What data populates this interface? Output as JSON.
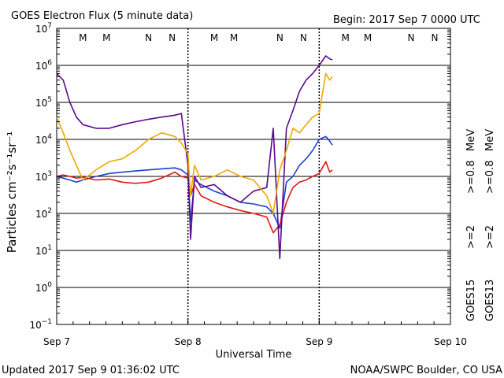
{
  "header": {
    "title": "GOES Electron Flux (5 minute data)",
    "begin": "Begin: 2017 Sep 7 0000 UTC"
  },
  "footer": {
    "updated": "Updated 2017 Sep  9 01:36:02 UTC",
    "credit": "NOAA/SWPC Boulder, CO USA"
  },
  "colors": {
    "ge2_goes15": "#1f3fd1",
    "ge2_goes13": "#e01818",
    "ge08_goes15": "#5a0a8c",
    "ge08_goes13": "#f0a800",
    "marker_m": "#d01010",
    "marker_n": "#1f3fd1"
  },
  "legend": {
    "goes15_label": "GOES15",
    "goes13_label": "GOES13",
    "ge2": ">=2",
    "ge08": ">=0.8",
    "unit": "MeV"
  },
  "markers": [
    {
      "label": "M",
      "x": 0.2,
      "color": "marker_m"
    },
    {
      "label": "M",
      "x": 0.38,
      "color": "marker_n"
    },
    {
      "label": "N",
      "x": 0.7,
      "color": "marker_m"
    },
    {
      "label": "N",
      "x": 0.88,
      "color": "marker_n"
    },
    {
      "label": "M",
      "x": 1.2,
      "color": "marker_m"
    },
    {
      "label": "M",
      "x": 1.35,
      "color": "marker_n"
    },
    {
      "label": "N",
      "x": 1.7,
      "color": "marker_m"
    },
    {
      "label": "N",
      "x": 1.88,
      "color": "marker_n"
    },
    {
      "label": "M",
      "x": 2.2,
      "color": "marker_m"
    },
    {
      "label": "M",
      "x": 2.37,
      "color": "marker_n"
    },
    {
      "label": "N",
      "x": 2.7,
      "color": "marker_m"
    },
    {
      "label": "N",
      "x": 2.88,
      "color": "marker_n"
    }
  ],
  "chart_data": {
    "type": "line",
    "title": "GOES Electron Flux (5 minute data)",
    "xlabel": "Universal Time",
    "ylabel": "Particles cm⁻²s⁻¹sr⁻¹",
    "x_unit": "days since Sep 7 0000 UTC",
    "xlim": [
      0,
      3
    ],
    "x_ticks": [
      {
        "x": 0,
        "label": "Sep 7"
      },
      {
        "x": 1,
        "label": "Sep 8"
      },
      {
        "x": 2,
        "label": "Sep 9"
      },
      {
        "x": 3,
        "label": "Sep 10"
      }
    ],
    "y_scale": "log",
    "ylim_exp": [
      -1,
      7
    ],
    "y_ticks_exp": [
      -1,
      0,
      1,
      2,
      3,
      4,
      5,
      6,
      7
    ],
    "threshold": {
      "value": 1000,
      "style": "dashed",
      "x_start": 2.0
    },
    "grid": "horizontal",
    "series": [
      {
        "name": "GOES15 >=2 MeV",
        "color": "ge2_goes15",
        "points": [
          [
            0,
            1000
          ],
          [
            0.05,
            900
          ],
          [
            0.1,
            800
          ],
          [
            0.15,
            700
          ],
          [
            0.2,
            800
          ],
          [
            0.3,
            1000
          ],
          [
            0.4,
            1200
          ],
          [
            0.5,
            1300
          ],
          [
            0.6,
            1400
          ],
          [
            0.7,
            1500
          ],
          [
            0.8,
            1600
          ],
          [
            0.9,
            1700
          ],
          [
            0.95,
            1500
          ],
          [
            1.0,
            1100
          ],
          [
            1.02,
            60
          ],
          [
            1.05,
            800
          ],
          [
            1.1,
            600
          ],
          [
            1.2,
            400
          ],
          [
            1.3,
            300
          ],
          [
            1.4,
            200
          ],
          [
            1.5,
            180
          ],
          [
            1.6,
            150
          ],
          [
            1.65,
            100
          ],
          [
            1.7,
            40
          ],
          [
            1.75,
            700
          ],
          [
            1.8,
            1000
          ],
          [
            1.85,
            2000
          ],
          [
            1.9,
            3000
          ],
          [
            1.95,
            5000
          ],
          [
            2.0,
            10000
          ],
          [
            2.05,
            12000
          ],
          [
            2.08,
            9000
          ],
          [
            2.1,
            7000
          ]
        ]
      },
      {
        "name": "GOES13 >=2 MeV",
        "color": "ge2_goes13",
        "points": [
          [
            0,
            1000
          ],
          [
            0.05,
            1100
          ],
          [
            0.1,
            1000
          ],
          [
            0.15,
            900
          ],
          [
            0.2,
            950
          ],
          [
            0.3,
            800
          ],
          [
            0.4,
            850
          ],
          [
            0.5,
            700
          ],
          [
            0.6,
            650
          ],
          [
            0.7,
            700
          ],
          [
            0.8,
            900
          ],
          [
            0.9,
            1300
          ],
          [
            0.95,
            1000
          ],
          [
            1.0,
            900
          ],
          [
            1.02,
            300
          ],
          [
            1.05,
            600
          ],
          [
            1.1,
            300
          ],
          [
            1.2,
            200
          ],
          [
            1.3,
            150
          ],
          [
            1.4,
            120
          ],
          [
            1.5,
            100
          ],
          [
            1.6,
            80
          ],
          [
            1.65,
            30
          ],
          [
            1.7,
            50
          ],
          [
            1.75,
            200
          ],
          [
            1.8,
            500
          ],
          [
            1.85,
            700
          ],
          [
            1.9,
            800
          ],
          [
            1.95,
            1000
          ],
          [
            2.0,
            1200
          ],
          [
            2.05,
            2500
          ],
          [
            2.08,
            1300
          ],
          [
            2.1,
            1500
          ]
        ]
      },
      {
        "name": "GOES15 >=0.8 MeV",
        "color": "ge08_goes15",
        "points": [
          [
            0,
            600000
          ],
          [
            0.05,
            400000
          ],
          [
            0.1,
            100000
          ],
          [
            0.15,
            40000
          ],
          [
            0.2,
            25000
          ],
          [
            0.3,
            20000
          ],
          [
            0.4,
            20000
          ],
          [
            0.5,
            25000
          ],
          [
            0.6,
            30000
          ],
          [
            0.7,
            35000
          ],
          [
            0.8,
            40000
          ],
          [
            0.9,
            45000
          ],
          [
            0.95,
            50000
          ],
          [
            1.0,
            2000
          ],
          [
            1.02,
            20
          ],
          [
            1.05,
            1000
          ],
          [
            1.1,
            500
          ],
          [
            1.2,
            600
          ],
          [
            1.3,
            300
          ],
          [
            1.4,
            200
          ],
          [
            1.5,
            400
          ],
          [
            1.6,
            500
          ],
          [
            1.65,
            20000
          ],
          [
            1.7,
            6
          ],
          [
            1.75,
            20000
          ],
          [
            1.8,
            60000
          ],
          [
            1.85,
            200000
          ],
          [
            1.9,
            400000
          ],
          [
            1.95,
            600000
          ],
          [
            2.0,
            1000000
          ],
          [
            2.05,
            1800000
          ],
          [
            2.08,
            1500000
          ],
          [
            2.1,
            1400000
          ]
        ]
      },
      {
        "name": "GOES13 >=0.8 MeV",
        "color": "ge08_goes13",
        "points": [
          [
            0,
            40000
          ],
          [
            0.05,
            15000
          ],
          [
            0.1,
            5000
          ],
          [
            0.15,
            2000
          ],
          [
            0.2,
            800
          ],
          [
            0.3,
            1500
          ],
          [
            0.4,
            2500
          ],
          [
            0.5,
            3000
          ],
          [
            0.6,
            5000
          ],
          [
            0.7,
            10000
          ],
          [
            0.8,
            15000
          ],
          [
            0.9,
            12000
          ],
          [
            0.95,
            8000
          ],
          [
            1.0,
            4000
          ],
          [
            1.02,
            300
          ],
          [
            1.05,
            2000
          ],
          [
            1.1,
            800
          ],
          [
            1.2,
            1000
          ],
          [
            1.3,
            1500
          ],
          [
            1.4,
            1000
          ],
          [
            1.5,
            800
          ],
          [
            1.6,
            300
          ],
          [
            1.65,
            100
          ],
          [
            1.7,
            1500
          ],
          [
            1.75,
            5000
          ],
          [
            1.8,
            20000
          ],
          [
            1.85,
            15000
          ],
          [
            1.9,
            25000
          ],
          [
            1.95,
            40000
          ],
          [
            2.0,
            50000
          ],
          [
            2.05,
            600000
          ],
          [
            2.08,
            400000
          ],
          [
            2.1,
            500000
          ]
        ]
      }
    ]
  }
}
